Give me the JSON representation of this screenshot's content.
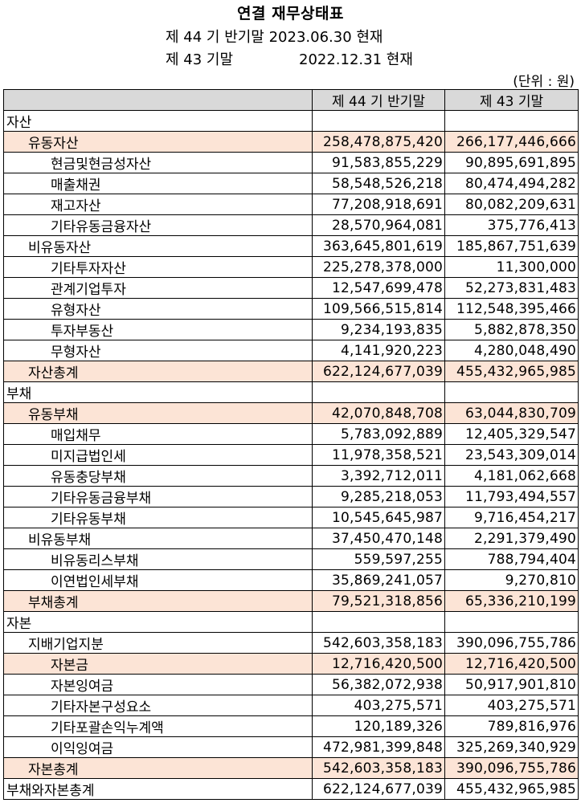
{
  "title": "연결 재무상태표",
  "period_current": "제 44 기 반기말 2023.06.30 현재",
  "period_prior_label": "제 43 기말",
  "period_prior_date": "2022.12.31 현재",
  "unit": "(단위 : 원)",
  "columns": [
    "",
    "제 44 기 반기말",
    "제 43 기말"
  ],
  "rows": [
    {
      "label": "자산",
      "cur": "",
      "prev": "",
      "level": 0,
      "hl": false
    },
    {
      "label": "유동자산",
      "cur": "258,478,875,420",
      "prev": "266,177,446,666",
      "level": 1,
      "hl": true
    },
    {
      "label": "현금및현금성자산",
      "cur": "91,583,855,229",
      "prev": "90,895,691,895",
      "level": 2,
      "hl": false
    },
    {
      "label": "매출채권",
      "cur": "58,548,526,218",
      "prev": "80,474,494,282",
      "level": 2,
      "hl": false
    },
    {
      "label": "재고자산",
      "cur": "77,208,918,691",
      "prev": "80,082,209,631",
      "level": 2,
      "hl": false
    },
    {
      "label": "기타유동금융자산",
      "cur": "28,570,964,081",
      "prev": "375,776,413",
      "level": 2,
      "hl": false
    },
    {
      "label": "비유동자산",
      "cur": "363,645,801,619",
      "prev": "185,867,751,639",
      "level": 1,
      "hl": false
    },
    {
      "label": "기타투자자산",
      "cur": "225,278,378,000",
      "prev": "11,300,000",
      "level": 2,
      "hl": false
    },
    {
      "label": "관계기업투자",
      "cur": "12,547,699,478",
      "prev": "52,273,831,483",
      "level": 2,
      "hl": false
    },
    {
      "label": "유형자산",
      "cur": "109,566,515,814",
      "prev": "112,548,395,466",
      "level": 2,
      "hl": false
    },
    {
      "label": "투자부동산",
      "cur": "9,234,193,835",
      "prev": "5,882,878,350",
      "level": 2,
      "hl": false
    },
    {
      "label": "무형자산",
      "cur": "4,141,920,223",
      "prev": "4,280,048,490",
      "level": 2,
      "hl": false
    },
    {
      "label": "자산총계",
      "cur": "622,124,677,039",
      "prev": "455,432,965,985",
      "level": 1,
      "hl": true
    },
    {
      "label": "부채",
      "cur": "",
      "prev": "",
      "level": 0,
      "hl": false
    },
    {
      "label": "유동부채",
      "cur": "42,070,848,708",
      "prev": "63,044,830,709",
      "level": 1,
      "hl": true
    },
    {
      "label": "매입채무",
      "cur": "5,783,092,889",
      "prev": "12,405,329,547",
      "level": 2,
      "hl": false
    },
    {
      "label": "미지급법인세",
      "cur": "11,978,358,521",
      "prev": "23,543,309,014",
      "level": 2,
      "hl": false
    },
    {
      "label": "유동충당부채",
      "cur": "3,392,712,011",
      "prev": "4,181,062,668",
      "level": 2,
      "hl": false
    },
    {
      "label": "기타유동금융부채",
      "cur": "9,285,218,053",
      "prev": "11,793,494,557",
      "level": 2,
      "hl": false
    },
    {
      "label": "기타유동부채",
      "cur": "10,545,645,987",
      "prev": "9,716,454,217",
      "level": 2,
      "hl": false
    },
    {
      "label": "비유동부채",
      "cur": "37,450,470,148",
      "prev": "2,291,379,490",
      "level": 1,
      "hl": false
    },
    {
      "label": "비유동리스부채",
      "cur": "559,597,255",
      "prev": "788,794,404",
      "level": 2,
      "hl": false
    },
    {
      "label": "이연법인세부채",
      "cur": "35,869,241,057",
      "prev": "9,270,810",
      "level": 2,
      "hl": false
    },
    {
      "label": "부채총계",
      "cur": "79,521,318,856",
      "prev": "65,336,210,199",
      "level": 1,
      "hl": true
    },
    {
      "label": "자본",
      "cur": "",
      "prev": "",
      "level": 0,
      "hl": false
    },
    {
      "label": "지배기업지분",
      "cur": "542,603,358,183",
      "prev": "390,096,755,786",
      "level": 1,
      "hl": false
    },
    {
      "label": "자본금",
      "cur": "12,716,420,500",
      "prev": "12,716,420,500",
      "level": 2,
      "hl": true
    },
    {
      "label": "자본잉여금",
      "cur": "56,382,072,938",
      "prev": "50,917,901,810",
      "level": 2,
      "hl": false
    },
    {
      "label": "기타자본구성요소",
      "cur": "403,275,571",
      "prev": "403,275,571",
      "level": 2,
      "hl": false
    },
    {
      "label": "기타포괄손익누계액",
      "cur": "120,189,326",
      "prev": "789,816,976",
      "level": 2,
      "hl": false
    },
    {
      "label": "이익잉여금",
      "cur": "472,981,399,848",
      "prev": "325,269,340,929",
      "level": 2,
      "hl": false
    },
    {
      "label": "자본총계",
      "cur": "542,603,358,183",
      "prev": "390,096,755,786",
      "level": 1,
      "hl": true
    },
    {
      "label": "부채와자본총계",
      "cur": "622,124,677,039",
      "prev": "455,432,965,985",
      "level": 0,
      "hl": false
    }
  ]
}
